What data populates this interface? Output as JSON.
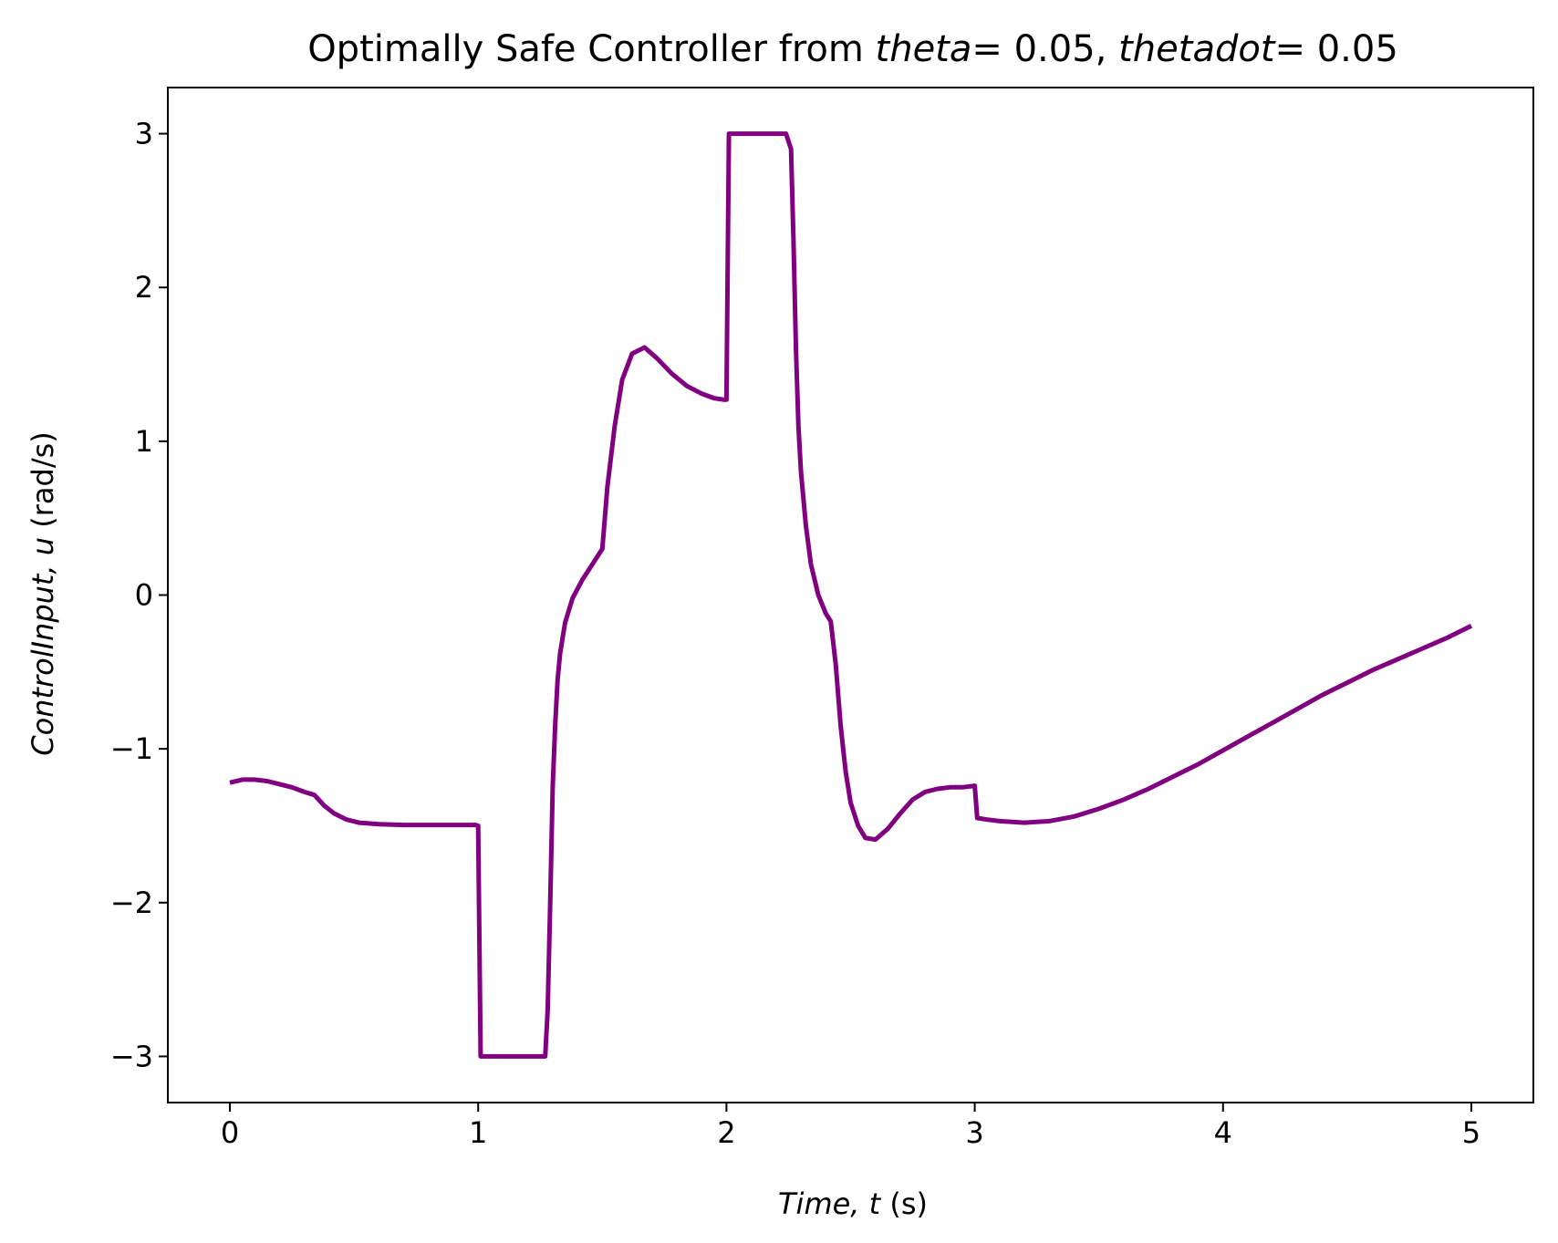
{
  "chart_data": {
    "type": "line",
    "title": {
      "prefix": "Optimally Safe Controller from ",
      "var1": "theta",
      "eq1": "= 0.05, ",
      "var2": "thetadot",
      "eq2": "= 0.05"
    },
    "xlabel": {
      "italic": "Time, t",
      "unit": " (s)"
    },
    "ylabel": {
      "italic": "ControlInput, u",
      "unit": " (rad/s)"
    },
    "xlim": [
      -0.25,
      5.25
    ],
    "ylim": [
      -3.3,
      3.3
    ],
    "xticks": [
      0,
      1,
      2,
      3,
      4,
      5
    ],
    "xtick_labels": [
      "0",
      "1",
      "2",
      "3",
      "4",
      "5"
    ],
    "yticks": [
      -3,
      -2,
      -1,
      0,
      1,
      2,
      3
    ],
    "ytick_labels": [
      "−3",
      "−2",
      "−1",
      "0",
      "1",
      "2",
      "3"
    ],
    "grid": false,
    "series": [
      {
        "color": "#800080",
        "x": [
          0,
          0.05,
          0.1,
          0.15,
          0.2,
          0.25,
          0.3,
          0.34,
          0.38,
          0.42,
          0.47,
          0.52,
          0.6,
          0.7,
          0.8,
          0.9,
          0.99,
          1.0,
          1.01,
          1.02,
          1.05,
          1.1,
          1.2,
          1.27,
          1.28,
          1.29,
          1.3,
          1.31,
          1.32,
          1.33,
          1.35,
          1.38,
          1.42,
          1.46,
          1.5,
          1.52,
          1.55,
          1.58,
          1.62,
          1.67,
          1.72,
          1.78,
          1.84,
          1.9,
          1.95,
          1.99,
          2.0,
          2.01,
          2.02,
          2.03,
          2.1,
          2.2,
          2.24,
          2.26,
          2.27,
          2.28,
          2.29,
          2.3,
          2.32,
          2.34,
          2.37,
          2.4,
          2.42,
          2.44,
          2.46,
          2.48,
          2.5,
          2.53,
          2.56,
          2.6,
          2.65,
          2.7,
          2.75,
          2.8,
          2.85,
          2.9,
          2.95,
          3.0,
          3.01,
          3.05,
          3.1,
          3.2,
          3.3,
          3.4,
          3.5,
          3.6,
          3.7,
          3.8,
          3.9,
          4.0,
          4.1,
          4.2,
          4.3,
          4.4,
          4.5,
          4.6,
          4.7,
          4.8,
          4.9,
          5.0
        ],
        "y": [
          -1.22,
          -1.2,
          -1.2,
          -1.21,
          -1.23,
          -1.25,
          -1.28,
          -1.3,
          -1.37,
          -1.42,
          -1.46,
          -1.48,
          -1.49,
          -1.495,
          -1.495,
          -1.495,
          -1.495,
          -1.5,
          -3.0,
          -3.0,
          -3.0,
          -3.0,
          -3.0,
          -3.0,
          -2.7,
          -2.0,
          -1.25,
          -0.85,
          -0.55,
          -0.38,
          -0.18,
          -0.02,
          0.1,
          0.2,
          0.3,
          0.7,
          1.1,
          1.4,
          1.57,
          1.61,
          1.54,
          1.44,
          1.36,
          1.31,
          1.28,
          1.27,
          1.27,
          3.0,
          3.0,
          3.0,
          3.0,
          3.0,
          3.0,
          2.9,
          2.3,
          1.6,
          1.1,
          0.8,
          0.45,
          0.2,
          0.0,
          -0.12,
          -0.17,
          -0.45,
          -0.85,
          -1.15,
          -1.35,
          -1.5,
          -1.58,
          -1.59,
          -1.52,
          -1.42,
          -1.33,
          -1.28,
          -1.26,
          -1.25,
          -1.25,
          -1.24,
          -1.45,
          -1.46,
          -1.47,
          -1.48,
          -1.47,
          -1.44,
          -1.39,
          -1.33,
          -1.26,
          -1.18,
          -1.1,
          -1.01,
          -0.92,
          -0.83,
          -0.74,
          -0.65,
          -0.57,
          -0.49,
          -0.42,
          -0.35,
          -0.28,
          -0.2
        ]
      }
    ]
  }
}
